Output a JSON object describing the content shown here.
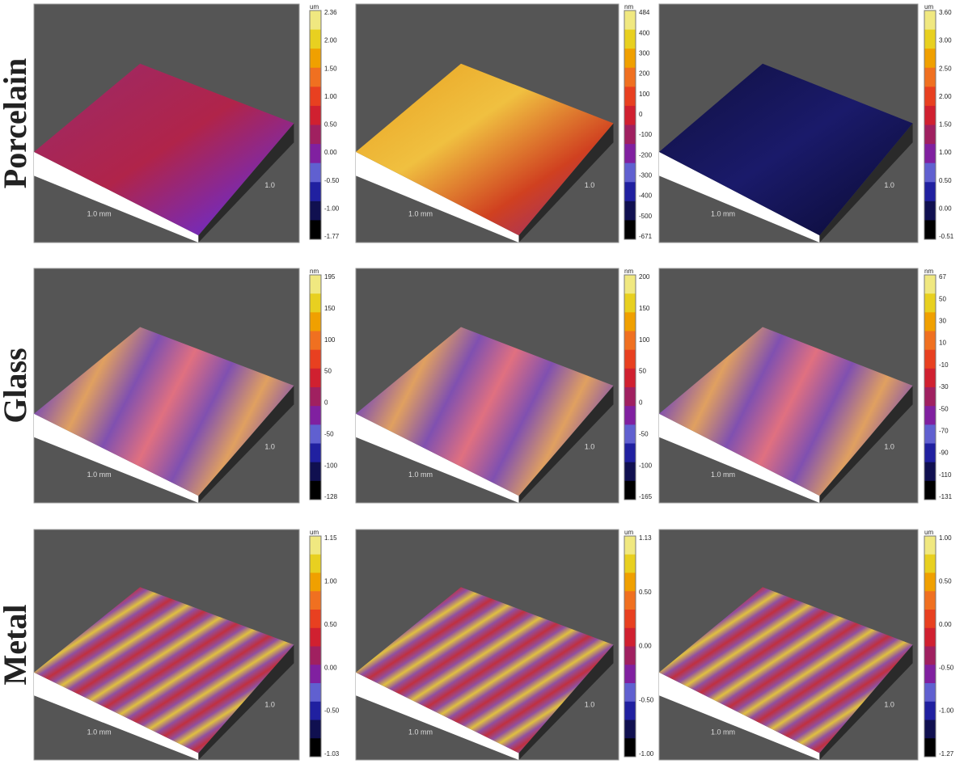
{
  "rows": [
    {
      "label": "Porcelain",
      "panels": [
        {
          "unit": "um",
          "x_label": "1.0 mm",
          "y_label": "1.0",
          "scale": [
            "2.36",
            "2.00",
            "1.50",
            "1.00",
            "0.50",
            "0.00",
            "-0.50",
            "-1.00",
            "-1.77"
          ]
        },
        {
          "unit": "nm",
          "x_label": "1.0 mm",
          "y_label": "1.0",
          "scale": [
            "484",
            "400",
            "300",
            "200",
            "100",
            "0",
            "-100",
            "-200",
            "-300",
            "-400",
            "-500",
            "-671"
          ]
        },
        {
          "unit": "um",
          "x_label": "1.0 mm",
          "y_label": "1.0",
          "scale": [
            "3.60",
            "3.00",
            "2.50",
            "2.00",
            "1.50",
            "1.00",
            "0.50",
            "0.00",
            "-0.51"
          ]
        }
      ]
    },
    {
      "label": "Glass",
      "panels": [
        {
          "unit": "nm",
          "x_label": "1.0 mm",
          "y_label": "1.0",
          "scale": [
            "195",
            "150",
            "100",
            "50",
            "0",
            "-50",
            "-100",
            "-128"
          ]
        },
        {
          "unit": "nm",
          "x_label": "1.0 mm",
          "y_label": "1.0",
          "scale": [
            "200",
            "150",
            "100",
            "50",
            "0",
            "-50",
            "-100",
            "-165"
          ]
        },
        {
          "unit": "nm",
          "x_label": "1.0 mm",
          "y_label": "1.0",
          "scale": [
            "67",
            "50",
            "30",
            "10",
            "-10",
            "-30",
            "-50",
            "-70",
            "-90",
            "-110",
            "-131"
          ]
        }
      ]
    },
    {
      "label": "Metal",
      "panels": [
        {
          "unit": "um",
          "x_label": "1.0 mm",
          "y_label": "1.0",
          "scale": [
            "1.15",
            "1.00",
            "0.50",
            "0.00",
            "-0.50",
            "-1.03"
          ]
        },
        {
          "unit": "um",
          "x_label": "1.0 mm",
          "y_label": "1.0",
          "scale": [
            "1.13",
            "0.50",
            "0.00",
            "-0.50",
            "-1.00"
          ]
        },
        {
          "unit": "um",
          "x_label": "1.0 mm",
          "y_label": "1.0",
          "scale": [
            "1.00",
            "0.50",
            "0.00",
            "-0.50",
            "-1.00",
            "-1.27"
          ]
        }
      ]
    }
  ]
}
